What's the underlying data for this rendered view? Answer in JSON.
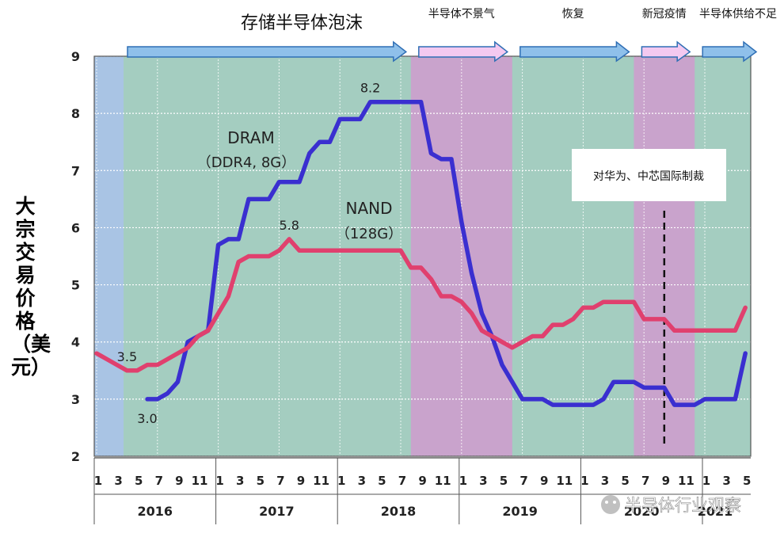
{
  "chart_data": {
    "type": "line",
    "ylabel": "大宗交易价格（美元）",
    "ylim": [
      2,
      9
    ],
    "yticks": [
      "2",
      "3",
      "4",
      "5",
      "6",
      "7",
      "8",
      "9"
    ],
    "x_month_ticks": [
      "1",
      "3",
      "5",
      "7",
      "9",
      "11",
      "1",
      "3",
      "5",
      "7",
      "9",
      "11",
      "1",
      "3",
      "5",
      "7",
      "9",
      "11",
      "1",
      "3",
      "5",
      "7",
      "9",
      "11",
      "1",
      "3",
      "5",
      "7",
      "9",
      "11",
      "1",
      "3",
      "5"
    ],
    "x_years": [
      "2016",
      "2017",
      "2018",
      "2019",
      "2020",
      "2021"
    ],
    "grid": true,
    "phases": [
      {
        "label": "存储半导体泡沫",
        "start": "2016-01",
        "end": "2018-08",
        "color": "#a4cdc0"
      },
      {
        "label": "半导体不景气",
        "start": "2018-08",
        "end": "2019-06",
        "color": "#c9a3cc"
      },
      {
        "label": "恢复",
        "start": "2019-06",
        "end": "2020-06",
        "color": "#a4cdc0"
      },
      {
        "label": "新冠疫情",
        "start": "2020-06",
        "end": "2020-12",
        "color": "#c9a3cc"
      },
      {
        "label": "半导体供给不足",
        "start": "2020-12",
        "end": "2021-05",
        "color": "#a4cdc0"
      }
    ],
    "event": {
      "label": "对华为、中芯国际制裁",
      "date": "2020-09"
    },
    "series": [
      {
        "name": "DRAM",
        "name_sub": "（DDR4, 8G）",
        "color": "#3a2fd0",
        "points": [
          [
            "2016-06",
            3.0
          ],
          [
            "2016-07",
            3.0
          ],
          [
            "2016-08",
            3.1
          ],
          [
            "2016-09",
            3.3
          ],
          [
            "2016-10",
            4.0
          ],
          [
            "2016-11",
            4.1
          ],
          [
            "2016-12",
            4.2
          ],
          [
            "2017-01",
            5.7
          ],
          [
            "2017-02",
            5.8
          ],
          [
            "2017-03",
            5.8
          ],
          [
            "2017-04",
            6.5
          ],
          [
            "2017-05",
            6.5
          ],
          [
            "2017-06",
            6.5
          ],
          [
            "2017-07",
            6.8
          ],
          [
            "2017-08",
            6.8
          ],
          [
            "2017-09",
            6.8
          ],
          [
            "2017-10",
            7.3
          ],
          [
            "2017-11",
            7.5
          ],
          [
            "2017-12",
            7.5
          ],
          [
            "2018-01",
            7.9
          ],
          [
            "2018-02",
            7.9
          ],
          [
            "2018-03",
            7.9
          ],
          [
            "2018-04",
            8.2
          ],
          [
            "2018-05",
            8.2
          ],
          [
            "2018-06",
            8.2
          ],
          [
            "2018-07",
            8.2
          ],
          [
            "2018-08",
            8.2
          ],
          [
            "2018-09",
            8.2
          ],
          [
            "2018-10",
            7.3
          ],
          [
            "2018-11",
            7.2
          ],
          [
            "2018-12",
            7.2
          ],
          [
            "2019-01",
            6.1
          ],
          [
            "2019-02",
            5.2
          ],
          [
            "2019-03",
            4.5
          ],
          [
            "2019-04",
            4.1
          ],
          [
            "2019-05",
            3.6
          ],
          [
            "2019-06",
            3.3
          ],
          [
            "2019-07",
            3.0
          ],
          [
            "2019-08",
            3.0
          ],
          [
            "2019-09",
            3.0
          ],
          [
            "2019-10",
            2.9
          ],
          [
            "2019-11",
            2.9
          ],
          [
            "2019-12",
            2.9
          ],
          [
            "2020-01",
            2.9
          ],
          [
            "2020-02",
            2.9
          ],
          [
            "2020-03",
            3.0
          ],
          [
            "2020-04",
            3.3
          ],
          [
            "2020-05",
            3.3
          ],
          [
            "2020-06",
            3.3
          ],
          [
            "2020-07",
            3.2
          ],
          [
            "2020-08",
            3.2
          ],
          [
            "2020-09",
            3.2
          ],
          [
            "2020-10",
            2.9
          ],
          [
            "2020-11",
            2.9
          ],
          [
            "2020-12",
            2.9
          ],
          [
            "2021-01",
            3.0
          ],
          [
            "2021-02",
            3.0
          ],
          [
            "2021-03",
            3.0
          ],
          [
            "2021-04",
            3.0
          ],
          [
            "2021-05",
            3.8
          ]
        ],
        "annotations": [
          {
            "text": "3.0",
            "date": "2016-06",
            "value": 3.0,
            "pos": "below"
          },
          {
            "text": "8.2",
            "date": "2018-04",
            "value": 8.2,
            "pos": "above"
          }
        ]
      },
      {
        "name": "NAND",
        "name_sub": "（128G）",
        "color": "#e0406e",
        "points": [
          [
            "2016-01",
            3.8
          ],
          [
            "2016-02",
            3.7
          ],
          [
            "2016-03",
            3.6
          ],
          [
            "2016-04",
            3.5
          ],
          [
            "2016-05",
            3.5
          ],
          [
            "2016-06",
            3.6
          ],
          [
            "2016-07",
            3.6
          ],
          [
            "2016-08",
            3.7
          ],
          [
            "2016-09",
            3.8
          ],
          [
            "2016-10",
            3.9
          ],
          [
            "2016-11",
            4.1
          ],
          [
            "2016-12",
            4.2
          ],
          [
            "2017-01",
            4.5
          ],
          [
            "2017-02",
            4.8
          ],
          [
            "2017-03",
            5.4
          ],
          [
            "2017-04",
            5.5
          ],
          [
            "2017-05",
            5.5
          ],
          [
            "2017-06",
            5.5
          ],
          [
            "2017-07",
            5.6
          ],
          [
            "2017-08",
            5.8
          ],
          [
            "2017-09",
            5.6
          ],
          [
            "2017-10",
            5.6
          ],
          [
            "2017-11",
            5.6
          ],
          [
            "2017-12",
            5.6
          ],
          [
            "2018-01",
            5.6
          ],
          [
            "2018-02",
            5.6
          ],
          [
            "2018-03",
            5.6
          ],
          [
            "2018-04",
            5.6
          ],
          [
            "2018-05",
            5.6
          ],
          [
            "2018-06",
            5.6
          ],
          [
            "2018-07",
            5.6
          ],
          [
            "2018-08",
            5.3
          ],
          [
            "2018-09",
            5.3
          ],
          [
            "2018-10",
            5.1
          ],
          [
            "2018-11",
            4.8
          ],
          [
            "2018-12",
            4.8
          ],
          [
            "2019-01",
            4.7
          ],
          [
            "2019-02",
            4.5
          ],
          [
            "2019-03",
            4.2
          ],
          [
            "2019-04",
            4.1
          ],
          [
            "2019-05",
            4.0
          ],
          [
            "2019-06",
            3.9
          ],
          [
            "2019-07",
            4.0
          ],
          [
            "2019-08",
            4.1
          ],
          [
            "2019-09",
            4.1
          ],
          [
            "2019-10",
            4.3
          ],
          [
            "2019-11",
            4.3
          ],
          [
            "2019-12",
            4.4
          ],
          [
            "2020-01",
            4.6
          ],
          [
            "2020-02",
            4.6
          ],
          [
            "2020-03",
            4.7
          ],
          [
            "2020-04",
            4.7
          ],
          [
            "2020-05",
            4.7
          ],
          [
            "2020-06",
            4.7
          ],
          [
            "2020-07",
            4.4
          ],
          [
            "2020-08",
            4.4
          ],
          [
            "2020-09",
            4.4
          ],
          [
            "2020-10",
            4.2
          ],
          [
            "2020-11",
            4.2
          ],
          [
            "2020-12",
            4.2
          ],
          [
            "2021-01",
            4.2
          ],
          [
            "2021-02",
            4.2
          ],
          [
            "2021-03",
            4.2
          ],
          [
            "2021-04",
            4.2
          ],
          [
            "2021-05",
            4.6
          ]
        ],
        "annotations": [
          {
            "text": "3.5",
            "date": "2016-04",
            "value": 3.5,
            "pos": "above"
          },
          {
            "text": "5.8",
            "date": "2017-08",
            "value": 5.8,
            "pos": "above"
          }
        ]
      }
    ]
  },
  "watermark": "半导体行业观察"
}
